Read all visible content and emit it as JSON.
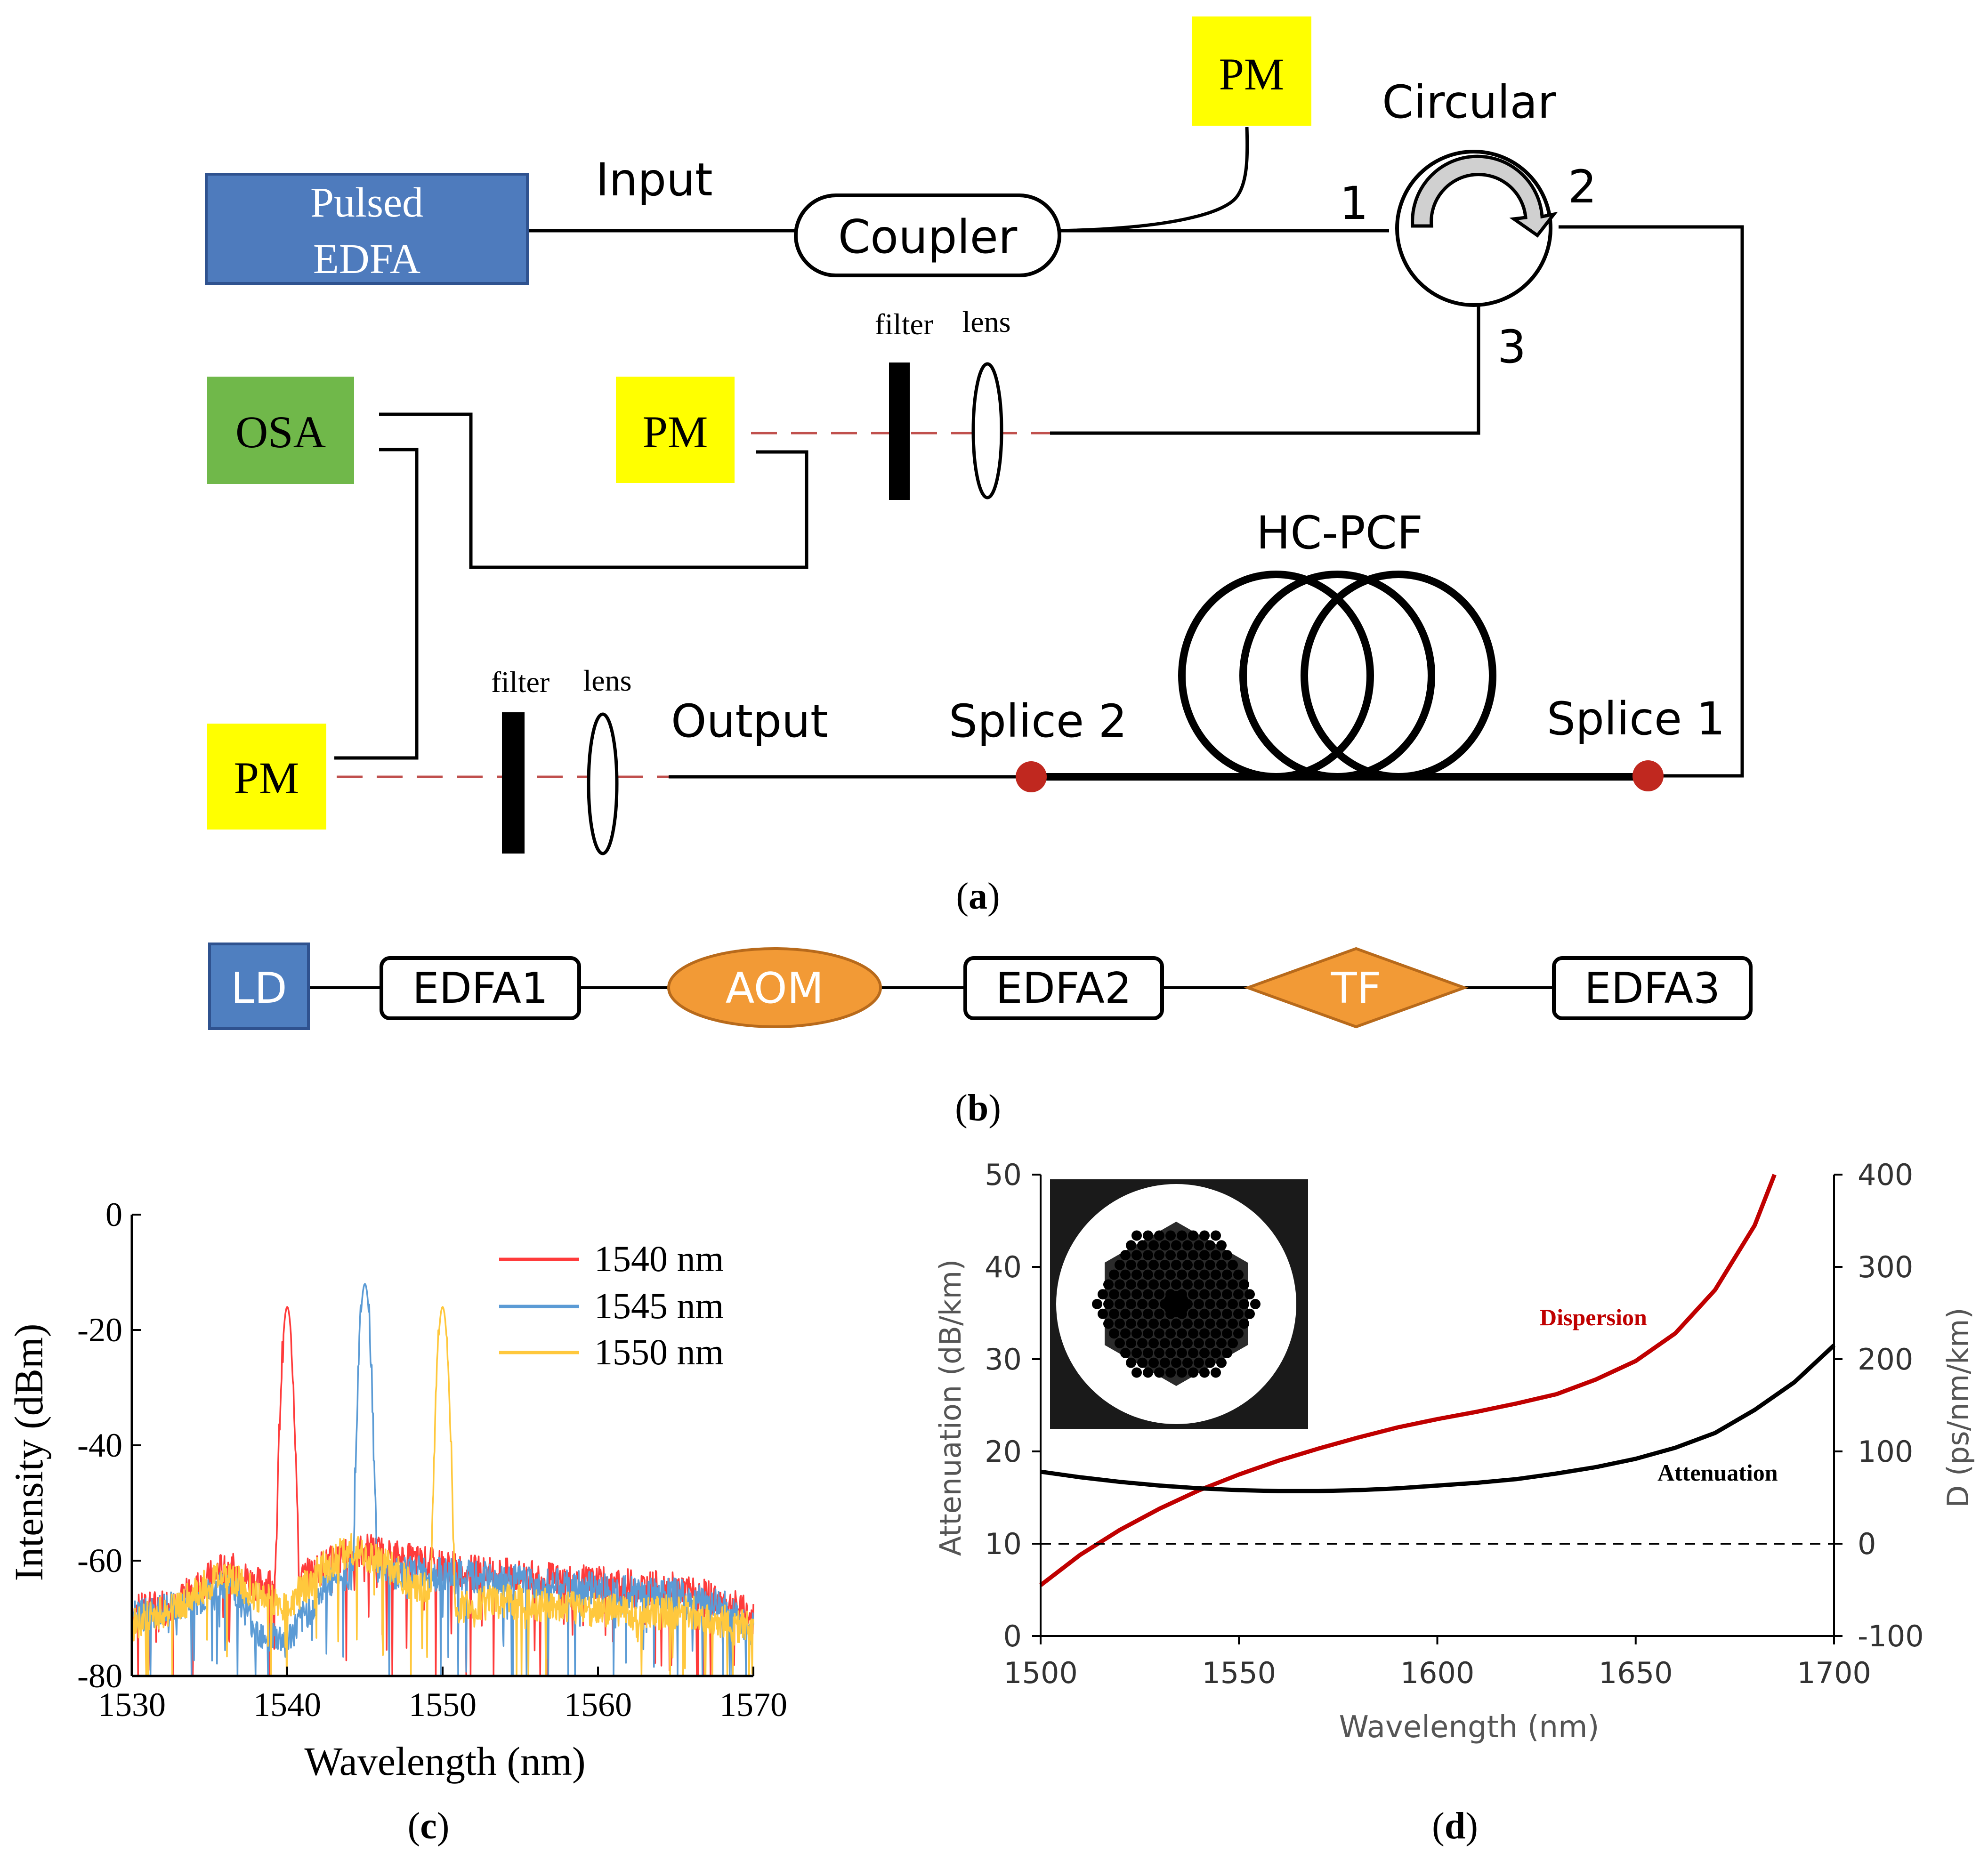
{
  "panel_a": {
    "caption": "a",
    "pulsed_edfa_line1": "Pulsed",
    "pulsed_edfa_line2": "EDFA",
    "input_label": "Input",
    "coupler": "Coupler",
    "pm_top": "PM",
    "circular": "Circular",
    "port1": "1",
    "port2": "2",
    "port3": "3",
    "osa": "OSA",
    "pm_mid": "PM",
    "filter_top": "filter",
    "lens_top": "lens",
    "hcpcf": "HC-PCF",
    "pm_bottom": "PM",
    "filter_bottom": "filter",
    "lens_bottom": "lens",
    "output_label": "Output",
    "splice2": "Splice 2",
    "splice1": "Splice 1",
    "colors": {
      "edfa": "#4e7bbd",
      "pm": "#ffff00",
      "osa": "#70b84a",
      "splice": "#c0281f",
      "beam": "#c0504d"
    }
  },
  "panel_b": {
    "caption": "b",
    "ld": "LD",
    "edfa1": "EDFA1",
    "aom": "AOM",
    "edfa2": "EDFA2",
    "tf": "TF",
    "edfa3": "EDFA3",
    "colors": {
      "ld": "#4f7fc0",
      "orange": "#f29a36"
    }
  },
  "panel_c": {
    "caption": "c",
    "chart_data": {
      "type": "line",
      "xlabel": "Wavelength (nm)",
      "ylabel": "Intensity (dBm)",
      "xlim": [
        1530,
        1570
      ],
      "ylim": [
        -80,
        0
      ],
      "xticks": [
        "1530",
        "1540",
        "1550",
        "1560",
        "1570"
      ],
      "yticks": [
        "0",
        "-20",
        "-40",
        "-60",
        "-80"
      ],
      "series": [
        {
          "name": "1540 nm",
          "color": "#ff3b3b",
          "peak_x": 1540.0,
          "peak_y": -16,
          "baseline": [
            [
              1530,
              -69
            ],
            [
              1533,
              -67
            ],
            [
              1536,
              -61
            ],
            [
              1538,
              -64
            ],
            [
              1539.5,
              -64
            ],
            [
              1541,
              -63
            ],
            [
              1543,
              -60
            ],
            [
              1545,
              -58
            ],
            [
              1548,
              -60
            ],
            [
              1552,
              -62
            ],
            [
              1556,
              -63
            ],
            [
              1560,
              -64
            ],
            [
              1565,
              -65
            ],
            [
              1568,
              -67
            ],
            [
              1570,
              -70
            ]
          ]
        },
        {
          "name": "1545 nm",
          "color": "#5b9bd5",
          "peak_x": 1545.0,
          "peak_y": -12,
          "baseline": [
            [
              1530,
              -70
            ],
            [
              1533,
              -68
            ],
            [
              1535,
              -66
            ],
            [
              1536.5,
              -64
            ],
            [
              1538,
              -72
            ],
            [
              1540,
              -74
            ],
            [
              1541.5,
              -68
            ],
            [
              1543,
              -63
            ],
            [
              1544.5,
              -62
            ],
            [
              1546,
              -62
            ],
            [
              1548,
              -62
            ],
            [
              1552,
              -63
            ],
            [
              1556,
              -64
            ],
            [
              1560,
              -65
            ],
            [
              1565,
              -66
            ],
            [
              1568,
              -68
            ],
            [
              1570,
              -72
            ]
          ]
        },
        {
          "name": "1550 nm",
          "color": "#ffc83d",
          "peak_x": 1550.0,
          "peak_y": -16,
          "baseline": [
            [
              1530,
              -71
            ],
            [
              1533,
              -68
            ],
            [
              1536,
              -62
            ],
            [
              1538,
              -66
            ],
            [
              1540,
              -68
            ],
            [
              1542,
              -62
            ],
            [
              1544,
              -58
            ],
            [
              1546,
              -60
            ],
            [
              1548,
              -64
            ],
            [
              1549.5,
              -66
            ],
            [
              1551,
              -68
            ],
            [
              1554,
              -67
            ],
            [
              1558,
              -68
            ],
            [
              1562,
              -69
            ],
            [
              1566,
              -69
            ],
            [
              1570,
              -72
            ]
          ]
        }
      ]
    }
  },
  "panel_d": {
    "caption": "d",
    "chart_data": {
      "type": "line",
      "xlabel": "Wavelength (nm)",
      "ylabel": "Attenuation (dB/km)",
      "y2label": "D (ps/nm/km)",
      "xlim": [
        1500,
        1700
      ],
      "ylim": [
        0,
        50
      ],
      "y2lim": [
        -100,
        400
      ],
      "xticks": [
        "1500",
        "1550",
        "1600",
        "1650",
        "1700"
      ],
      "yticks": [
        "0",
        "10",
        "20",
        "30",
        "40",
        "50"
      ],
      "y2ticks": [
        "-100",
        "0",
        "100",
        "200",
        "300",
        "400"
      ],
      "annotations": {
        "dispersion": "Dispersion",
        "attenuation": "Attenuation"
      },
      "series": [
        {
          "name": "Dispersion",
          "axis": "right",
          "color": "#c00000",
          "x": [
            1500,
            1510,
            1520,
            1530,
            1540,
            1550,
            1560,
            1570,
            1580,
            1590,
            1600,
            1610,
            1620,
            1630,
            1640,
            1650,
            1660,
            1670,
            1680,
            1685
          ],
          "y": [
            -45,
            -12,
            15,
            38,
            58,
            75,
            90,
            103,
            115,
            126,
            135,
            143,
            152,
            162,
            178,
            198,
            228,
            275,
            345,
            400
          ]
        },
        {
          "name": "Attenuation",
          "axis": "left",
          "color": "#000000",
          "x": [
            1500,
            1510,
            1520,
            1530,
            1540,
            1550,
            1560,
            1570,
            1580,
            1590,
            1600,
            1610,
            1620,
            1630,
            1640,
            1650,
            1660,
            1670,
            1680,
            1690,
            1700
          ],
          "y": [
            17.8,
            17.2,
            16.7,
            16.3,
            16.0,
            15.8,
            15.7,
            15.7,
            15.8,
            16.0,
            16.3,
            16.6,
            17.0,
            17.6,
            18.3,
            19.2,
            20.4,
            22.0,
            24.5,
            27.5,
            31.5
          ]
        },
        {
          "name": "zero-dispersion",
          "axis": "right",
          "color": "#000000",
          "style": "dashed",
          "x": [
            1500,
            1700
          ],
          "y": [
            0,
            0
          ]
        }
      ]
    }
  }
}
